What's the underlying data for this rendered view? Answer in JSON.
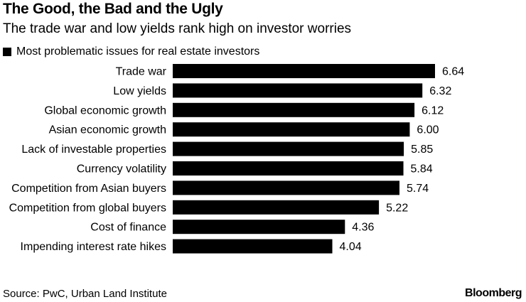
{
  "chart_data": {
    "type": "bar",
    "orientation": "horizontal",
    "title": "The Good, the Bad and the Ugly",
    "subtitle": "The trade war and low yields rank high on investor worries",
    "legend": "Most problematic issues for real estate investors",
    "categories": [
      "Trade war",
      "Low yields",
      "Global economic growth",
      "Asian economic growth",
      "Lack of investable properties",
      "Currency volatility",
      "Competition from Asian buyers",
      "Competition from global buyers",
      "Cost of finance",
      "Impending interest rate hikes"
    ],
    "values": [
      6.64,
      6.32,
      6.12,
      6.0,
      5.85,
      5.84,
      5.74,
      5.22,
      4.36,
      4.04
    ],
    "value_labels": [
      "6.64",
      "6.32",
      "6.12",
      "6.00",
      "5.85",
      "5.84",
      "5.74",
      "5.22",
      "4.36",
      "4.04"
    ],
    "xlim": [
      0,
      6.64
    ],
    "grid": false,
    "bar_color": "#000000"
  },
  "footer": {
    "source": "Source: PwC, Urban Land Institute",
    "brand": "Bloomberg"
  }
}
